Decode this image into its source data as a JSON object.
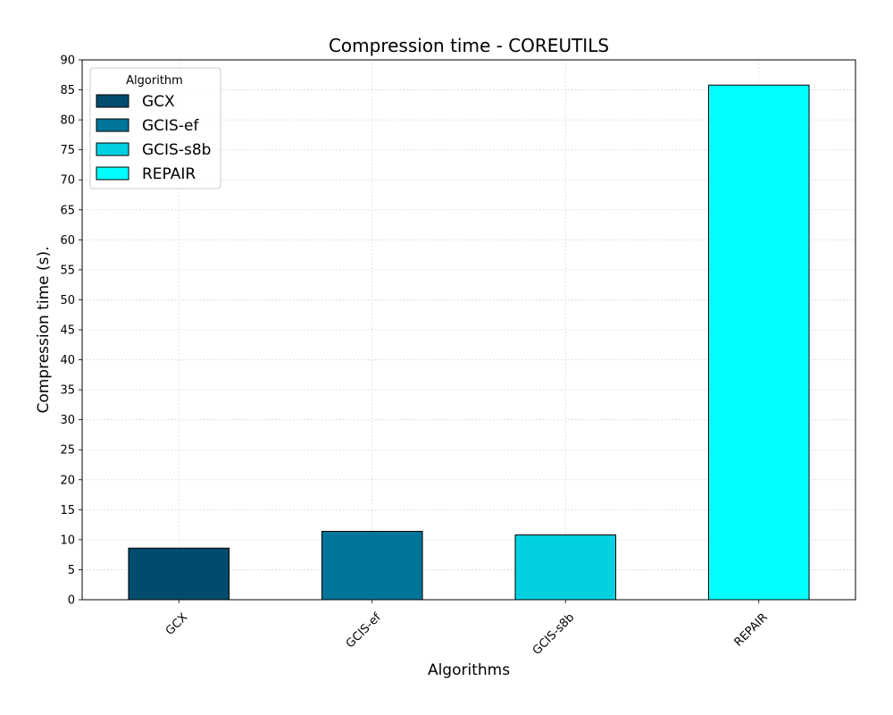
{
  "chart_data": {
    "type": "bar",
    "title": "Compression time -  COREUTILS",
    "xlabel": "Algorithms",
    "ylabel": "Compression time (s).",
    "categories": [
      "GCX",
      "GCIS-ef",
      "GCIS-s8b",
      "REPAIR"
    ],
    "values": [
      8.6,
      11.4,
      10.8,
      85.8
    ],
    "colors": [
      "#004c6d",
      "#00759a",
      "#00d0e0",
      "#00ffff"
    ],
    "ylim": [
      0,
      90
    ],
    "yticks": [
      0,
      5,
      10,
      15,
      20,
      25,
      30,
      35,
      40,
      45,
      50,
      55,
      60,
      65,
      70,
      75,
      80,
      85,
      90
    ],
    "grid": true,
    "legend": {
      "title": "Algorithm",
      "placement": "top-left",
      "entries": [
        "GCX",
        "GCIS-ef",
        "GCIS-s8b",
        "REPAIR"
      ]
    }
  }
}
